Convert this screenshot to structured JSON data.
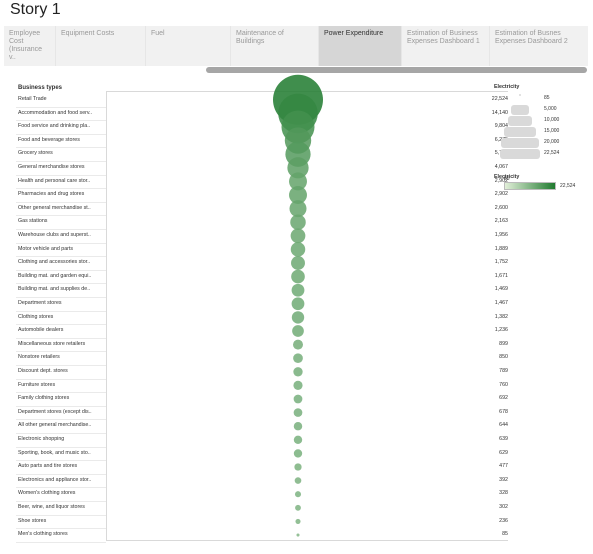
{
  "story": {
    "title": "Story 1"
  },
  "tabs": [
    {
      "label": "Employee Cost (Insurance v..",
      "active": false
    },
    {
      "label": "Equipment Costs",
      "active": false
    },
    {
      "label": "Fuel",
      "active": false
    },
    {
      "label": "Maintenance of Buildings",
      "active": false
    },
    {
      "label": "Power Expenditure",
      "active": true
    },
    {
      "label": "Estimation of Business Expenses Dashboard 1",
      "active": false
    },
    {
      "label": "Estimation of Busnes Expenses Dashboard 2",
      "active": false
    }
  ],
  "viz": {
    "row_header": "Business types"
  },
  "legend": {
    "size_title": "Electricity",
    "size_steps": [
      "85",
      "5,000",
      "10,000",
      "15,000",
      "20,000",
      "22,524"
    ],
    "color_title": "Electricity",
    "color_min": "85",
    "color_max": "22,524",
    "color_low": "#e2efd9",
    "color_high": "#1f7a2e"
  },
  "chart_data": {
    "type": "bubble",
    "measure": "Electricity",
    "categories": [
      "Retail Trade",
      "Accommodation and food serv..",
      "Food service and drinking pla..",
      "Food and beverage stores",
      "Grocery stores",
      "General merchandise stores",
      "Health and personal care stor..",
      "Pharmacies and drug stores",
      "Other general merchandise st..",
      "Gas stations",
      "Warehouse clubs and superst..",
      "Motor vehicle and parts",
      "Clothing and accessories stor..",
      "Building mat. and garden equi..",
      "Building mat. and supplies de..",
      "Department stores",
      "Clothing stores",
      "Automobile dealers",
      "Miscellaneous store retailers",
      "Nonstore retailers",
      "Discount dept. stores",
      "Furniture stores",
      "Family clothing stores",
      "Department stores (except dis..",
      "All other general merchandise..",
      "Electronic shopping",
      "Sporting, book, and music sto..",
      "Auto parts and tire stores",
      "Electronics and appliance stor..",
      "Women's clothing stores",
      "Beer, wine, and liquor stores",
      "Shoe stores",
      "Men's clothing stores"
    ],
    "values": [
      22524,
      14140,
      9804,
      6275,
      5742,
      4067,
      2902,
      2902,
      2600,
      2163,
      1956,
      1889,
      1752,
      1671,
      1469,
      1467,
      1382,
      1236,
      899,
      850,
      789,
      760,
      692,
      678,
      644,
      639,
      629,
      477,
      392,
      328,
      302,
      236,
      85
    ],
    "value_labels": [
      "22,524",
      "14,140",
      "9,804",
      "6,275",
      "5,742",
      "4,067",
      "2,902",
      "2,902",
      "2,600",
      "2,163",
      "1,956",
      "1,889",
      "1,752",
      "1,671",
      "1,469",
      "1,467",
      "1,382",
      "1,236",
      "899",
      "850",
      "789",
      "760",
      "692",
      "678",
      "644",
      "639",
      "629",
      "477",
      "392",
      "328",
      "302",
      "236",
      "85"
    ]
  }
}
